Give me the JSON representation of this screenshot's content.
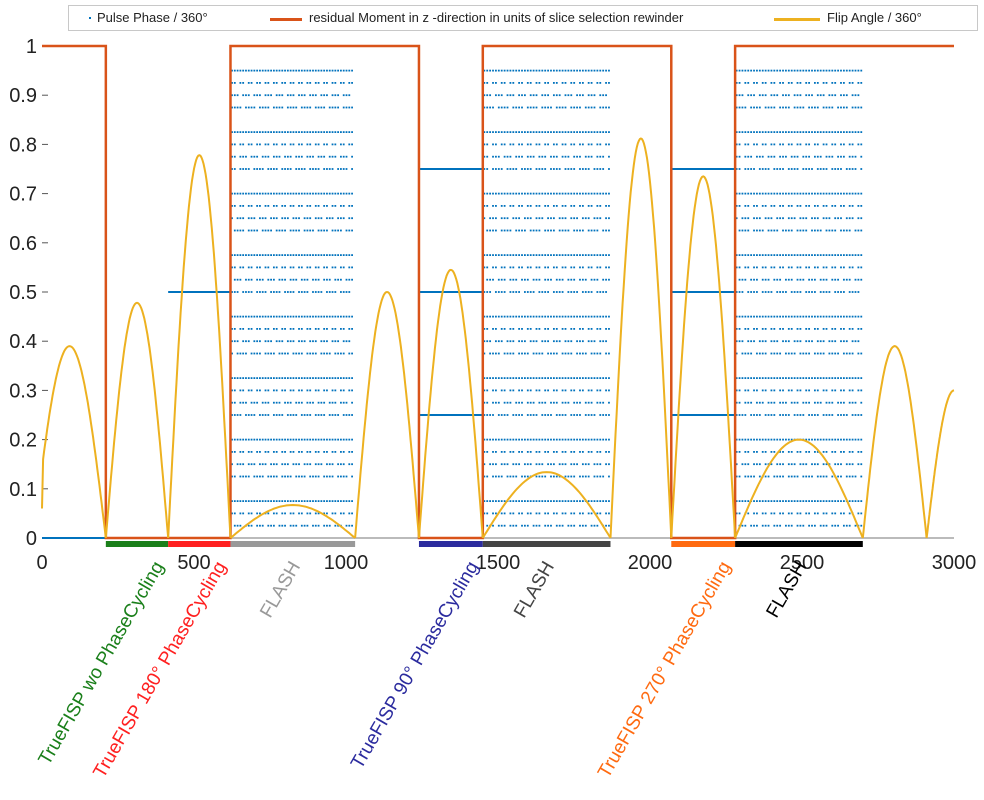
{
  "chart_data": {
    "type": "line",
    "title": "",
    "xlabel": "",
    "ylabel": "",
    "xlim": [
      0,
      3000
    ],
    "ylim": [
      0,
      1
    ],
    "x_ticks": [
      0,
      500,
      1000,
      1500,
      2000,
      2500,
      3000
    ],
    "x_tick_labels": [
      "0",
      "500",
      "1000",
      "1500",
      "2000",
      "2500",
      "3000"
    ],
    "y_ticks": [
      0,
      0.1,
      0.2,
      0.3,
      0.4,
      0.5,
      0.6,
      0.7,
      0.8,
      0.9,
      1
    ],
    "y_tick_labels": [
      "0",
      "0.1",
      "0.2",
      "0.3",
      "0.4",
      "0.5",
      "0.6",
      "0.7",
      "0.8",
      "0.9",
      "1"
    ],
    "grid": false,
    "legend": {
      "placement": "top",
      "entries": [
        {
          "label": "Pulse Phase / 360°",
          "marker": "dot",
          "color": "#0072bd"
        },
        {
          "label": "residual Moment in z -direction in units of slice selection rewinder",
          "marker": "line",
          "color": "#d95319"
        },
        {
          "label": "Flip Angle / 360°",
          "marker": "line",
          "color": "#edb120"
        }
      ]
    },
    "series": [
      {
        "name": "residual Moment in z -direction in units of slice selection rewinder",
        "color": "#d95319",
        "x": [
          0,
          210,
          210,
          620,
          620,
          1240,
          1240,
          1450,
          1450,
          2070,
          2070,
          2280,
          2280,
          3000
        ],
        "y": [
          1,
          1,
          0,
          0,
          1,
          1,
          0,
          0,
          1,
          1,
          0,
          0,
          1,
          1
        ]
      },
      {
        "name": "Flip Angle / 360°",
        "color": "#edb120",
        "lobes": [
          {
            "x0": 0,
            "x1": 210,
            "peak": 0.39,
            "start": 0.06
          },
          {
            "x0": 210,
            "x1": 415,
            "peak": 0.478
          },
          {
            "x0": 415,
            "x1": 620,
            "peak": 0.778
          },
          {
            "x0": 620,
            "x1": 1030,
            "peak": 0.067
          },
          {
            "x0": 1030,
            "x1": 1240,
            "peak": 0.5
          },
          {
            "x0": 1240,
            "x1": 1450,
            "peak": 0.545
          },
          {
            "x0": 1450,
            "x1": 1870,
            "peak": 0.134
          },
          {
            "x0": 1870,
            "x1": 2070,
            "peak": 0.812
          },
          {
            "x0": 2070,
            "x1": 2280,
            "peak": 0.735
          },
          {
            "x0": 2280,
            "x1": 2700,
            "peak": 0.2
          },
          {
            "x0": 2700,
            "x1": 2910,
            "peak": 0.39
          },
          {
            "x0": 2910,
            "x1": 3000,
            "peak": 0.3,
            "partial": true
          }
        ]
      },
      {
        "name": "Pulse Phase / 360°",
        "color": "#0072bd",
        "segments": [
          {
            "x0": 0,
            "x1": 415,
            "value": 0
          },
          {
            "x0": 415,
            "x1": 620,
            "value": 0.5
          },
          {
            "x0": 1240,
            "x1": 1450,
            "values": [
              0,
              0.25,
              0.5,
              0.75
            ]
          },
          {
            "x0": 2070,
            "x1": 2280,
            "values": [
              0,
              0.25,
              0.5,
              0.75
            ]
          }
        ],
        "flash_scatter": [
          {
            "x0": 625,
            "x1": 1020
          },
          {
            "x0": 1455,
            "x1": 1865
          },
          {
            "x0": 2285,
            "x1": 2695
          }
        ]
      }
    ],
    "segments_bar": [
      {
        "label": "TrueFISP wo PhaseCycling",
        "x0": 210,
        "x1": 415,
        "color": "#1a7f1a"
      },
      {
        "label": "TrueFISP 180° PhaseCycling",
        "x0": 415,
        "x1": 620,
        "color": "#ff2020"
      },
      {
        "label": "FLASH",
        "x0": 620,
        "x1": 1030,
        "color": "#999999"
      },
      {
        "label": "TrueFISP 90° PhaseCycling",
        "x0": 1240,
        "x1": 1450,
        "color": "#2b2b9e"
      },
      {
        "label": "FLASH",
        "x0": 1450,
        "x1": 1870,
        "color": "#444444"
      },
      {
        "label": "TrueFISP 270° PhaseCycling",
        "x0": 2070,
        "x1": 2280,
        "color": "#ff6a10"
      },
      {
        "label": "FLASH",
        "x0": 2280,
        "x1": 2700,
        "color": "#000000"
      }
    ]
  }
}
